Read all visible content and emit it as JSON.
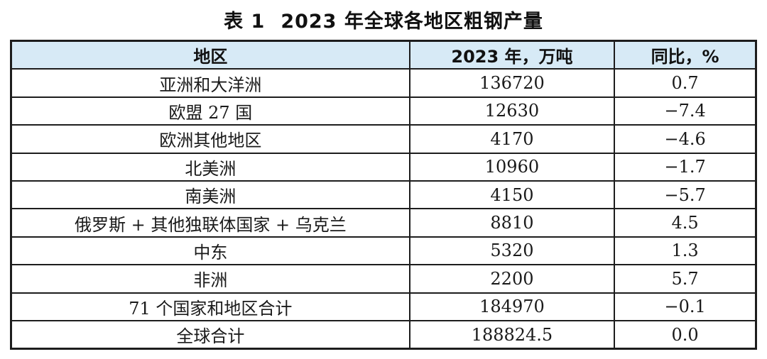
{
  "caption": {
    "label": "表 1",
    "text": "2023 年全球各地区粗钢产量"
  },
  "table": {
    "headers": {
      "region": "地区",
      "production": "2023 年，万吨",
      "yoy": "同比，%"
    },
    "rows": [
      {
        "region": "亚洲和大洋洲",
        "production": "136720",
        "yoy": "0.7"
      },
      {
        "region": "欧盟 27 国",
        "production": "12630",
        "yoy": "−7.4"
      },
      {
        "region": "欧洲其他地区",
        "production": "4170",
        "yoy": "−4.6"
      },
      {
        "region": "北美洲",
        "production": "10960",
        "yoy": "−1.7"
      },
      {
        "region": "南美洲",
        "production": "4150",
        "yoy": "−5.7"
      },
      {
        "region": "俄罗斯 + 其他独联体国家 + 乌克兰",
        "production": "8810",
        "yoy": "4.5"
      },
      {
        "region": "中东",
        "production": "5320",
        "yoy": "1.3"
      },
      {
        "region": "非洲",
        "production": "2200",
        "yoy": "5.7"
      },
      {
        "region": "71 个国家和地区合计",
        "production": "184970",
        "yoy": "−0.1"
      },
      {
        "region": "全球合计",
        "production": "188824.5",
        "yoy": "0.0"
      }
    ]
  },
  "colors": {
    "header_bg": "#d7eaf6",
    "border": "#1d1d1d",
    "text": "#1a1a1a"
  }
}
